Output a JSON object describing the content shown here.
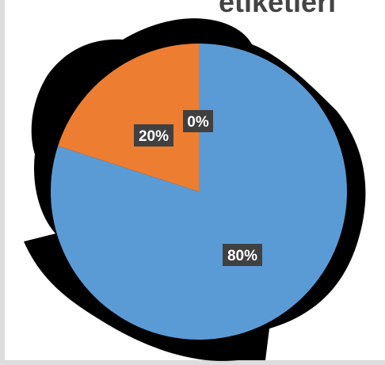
{
  "chart_data": {
    "type": "pie",
    "title": "etiketleri",
    "slices": [
      {
        "label": "80%",
        "value": 80,
        "color": "#5b9bd5"
      },
      {
        "label": "20%",
        "value": 20,
        "color": "#ed7d31"
      },
      {
        "label": "0%",
        "value": 0,
        "color": "#a5a5a5"
      }
    ],
    "data_label_style": {
      "background": "#404040",
      "text_color": "#ffffff"
    },
    "legend": "none"
  }
}
